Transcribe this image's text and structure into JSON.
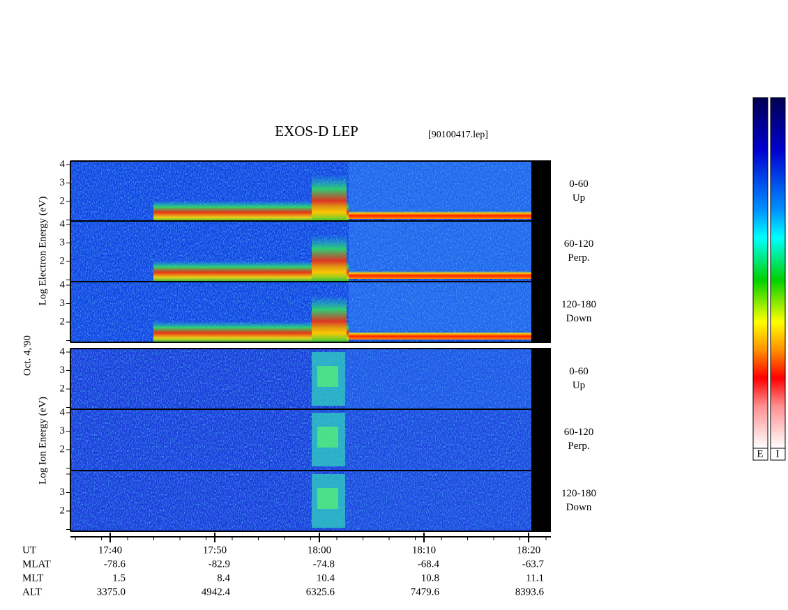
{
  "title": "EXOS-D LEP",
  "file": "[90100417.lep]",
  "date_label": "Oct. 4,'90",
  "electron_label": "Log Electron Energy (eV)",
  "ion_label": "Log Ion Energy (eV)",
  "energy_ticks": [
    "4",
    "3",
    "2"
  ],
  "panels": [
    {
      "range": "0-60",
      "direction": "Up"
    },
    {
      "range": "60-120",
      "direction": "Perp."
    },
    {
      "range": "120-180",
      "direction": "Down"
    },
    {
      "range": "0-60",
      "direction": "Up"
    },
    {
      "range": "60-120",
      "direction": "Perp."
    },
    {
      "range": "120-180",
      "direction": "Down"
    }
  ],
  "time_axis": [
    {
      "name": "UT",
      "values": [
        "17:40",
        "17:50",
        "18:00",
        "18:10",
        "18:20"
      ]
    },
    {
      "name": "MLAT",
      "values": [
        "-78.6",
        "-82.9",
        "-74.8",
        "-68.4",
        "-63.7"
      ]
    },
    {
      "name": "MLT",
      "values": [
        "1.5",
        "8.4",
        "10.4",
        "10.8",
        "11.1"
      ]
    },
    {
      "name": "ALT",
      "values": [
        "3375.0",
        "4942.4",
        "6325.6",
        "7479.6",
        "8393.6"
      ]
    }
  ],
  "colorbar_labels": [
    "E",
    "I"
  ]
}
